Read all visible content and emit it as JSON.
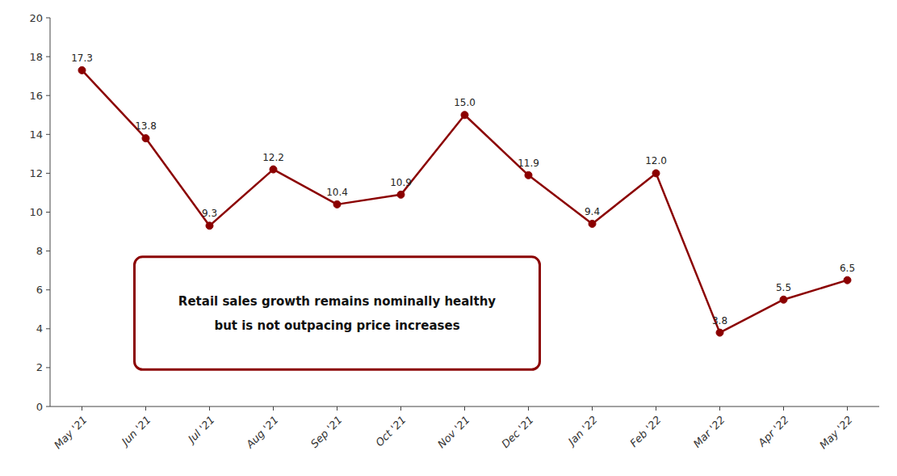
{
  "chart_data": {
    "type": "line",
    "categories": [
      "May '21",
      "Jun '21",
      "Jul '21",
      "Aug '21",
      "Sep '21",
      "Oct '21",
      "Nov '21",
      "Dec '21",
      "Jan '22",
      "Feb '22",
      "Mar '22",
      "Apr '22",
      "May '22"
    ],
    "values": [
      17.3,
      13.8,
      9.3,
      12.2,
      10.4,
      10.9,
      15.0,
      11.9,
      9.4,
      12.0,
      3.8,
      5.5,
      6.5
    ],
    "value_labels": [
      "17.3",
      "13.8",
      "9.3",
      "12.2",
      "10.4",
      "10.9",
      "15.0",
      "11.9",
      "9.4",
      "12.0",
      "3.8",
      "5.5",
      "6.5"
    ],
    "color": "#8B0000",
    "marker": "circle",
    "ylim": [
      0,
      20
    ],
    "yticks": [
      0,
      2,
      4,
      6,
      8,
      10,
      12,
      14,
      16,
      18,
      20
    ],
    "grid": false,
    "data_labels": true,
    "annotations": [
      "Retail sales growth remains nominally healthy",
      "but is not outpacing price increases"
    ]
  }
}
